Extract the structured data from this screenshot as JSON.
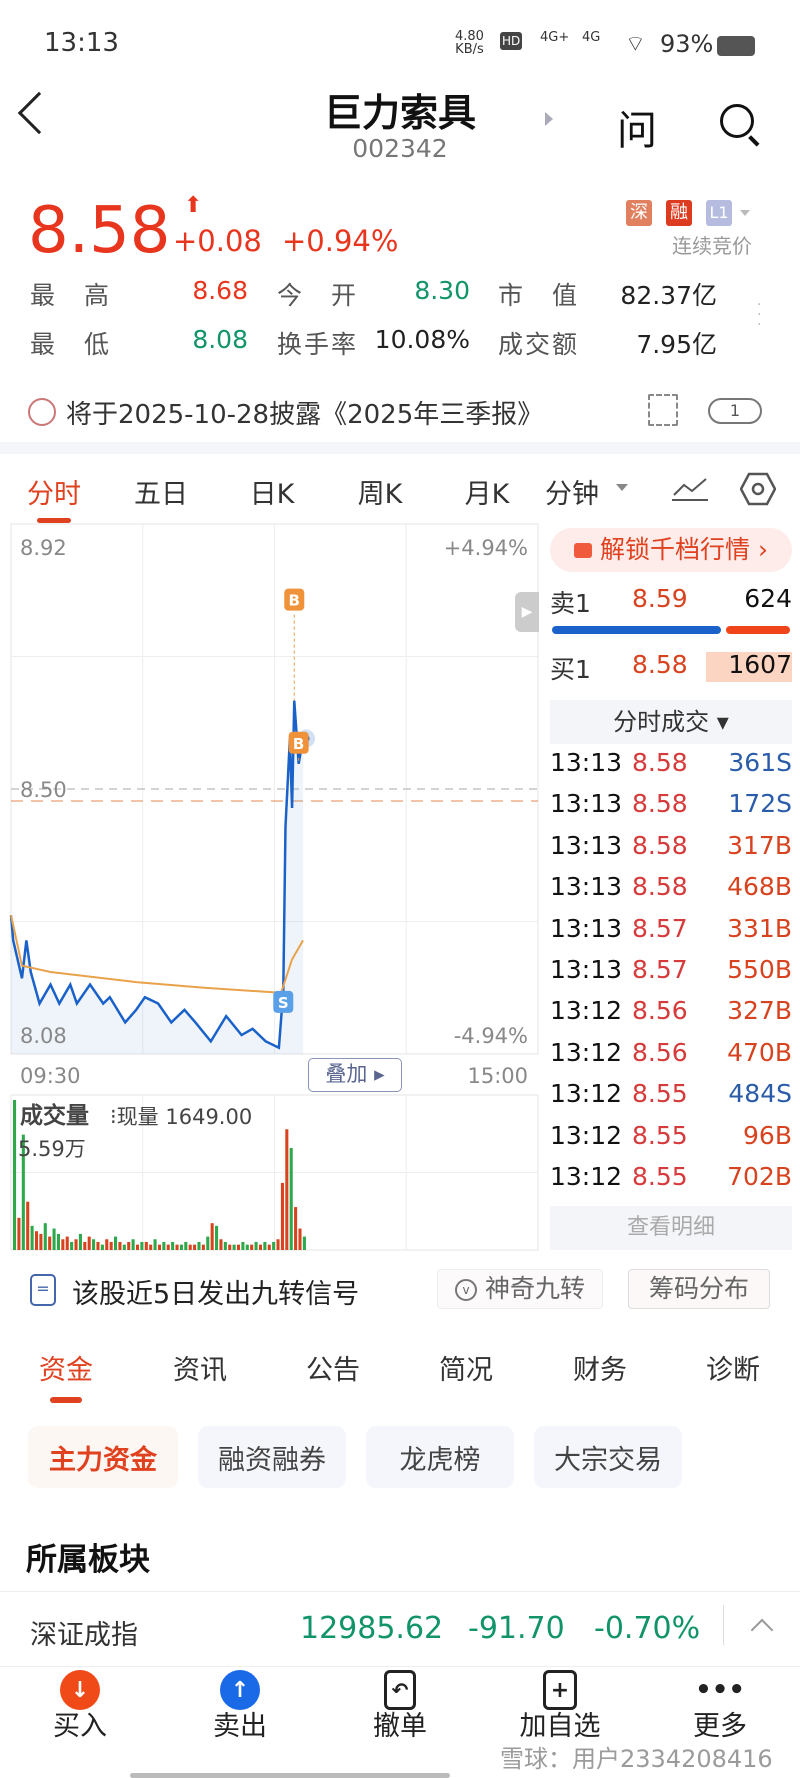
{
  "status_bar": {
    "time": "13:13",
    "net_speed": "4.80",
    "net_unit": "KB/s",
    "hd": "HD",
    "signal1": "4G+",
    "signal2": "4G",
    "battery": "93%"
  },
  "header": {
    "title": "巨力索具",
    "code": "002342",
    "ask_icon": "问"
  },
  "quote": {
    "price": "8.58",
    "change": "+0.08",
    "change_pct": "+0.94%",
    "badges": [
      "深",
      "融",
      "L1"
    ],
    "trading_status": "连续竞价",
    "stats": [
      {
        "label": "最　高",
        "value": "8.68",
        "color": "red"
      },
      {
        "label": "今　开",
        "value": "8.30",
        "color": "green"
      },
      {
        "label": "市　值",
        "value": "82.37亿",
        "color": "black"
      },
      {
        "label": "最　低",
        "value": "8.08",
        "color": "green"
      },
      {
        "label": "换手率",
        "value": "10.08%",
        "color": "black"
      },
      {
        "label": "成交额",
        "value": "7.95亿",
        "color": "black"
      }
    ]
  },
  "notice": {
    "text": "将于2025-10-28披露《2025年三季报》",
    "badge": "1"
  },
  "chart_tabs": [
    "分时",
    "五日",
    "日K",
    "周K",
    "月K",
    "分钟"
  ],
  "chart_data": {
    "type": "line",
    "ylim": [
      8.08,
      8.92
    ],
    "y_tick_labels": [
      "8.92",
      "8.50",
      "8.08"
    ],
    "pct_tick_labels": [
      "+4.94%",
      "-4.94%"
    ],
    "prev_close": 8.5,
    "x_tick_labels": [
      "09:30",
      "15:00"
    ],
    "overlay_button": "叠加",
    "price_series": [
      {
        "t": "09:30",
        "p": 8.3
      },
      {
        "t": "09:31",
        "p": 8.26
      },
      {
        "t": "09:35",
        "p": 8.2
      },
      {
        "t": "09:37",
        "p": 8.26
      },
      {
        "t": "09:39",
        "p": 8.21
      },
      {
        "t": "09:43",
        "p": 8.16
      },
      {
        "t": "09:48",
        "p": 8.19
      },
      {
        "t": "09:52",
        "p": 8.16
      },
      {
        "t": "09:57",
        "p": 8.19
      },
      {
        "t": "10:00",
        "p": 8.16
      },
      {
        "t": "10:06",
        "p": 8.19
      },
      {
        "t": "10:12",
        "p": 8.16
      },
      {
        "t": "10:15",
        "p": 8.17
      },
      {
        "t": "10:22",
        "p": 8.13
      },
      {
        "t": "10:27",
        "p": 8.15
      },
      {
        "t": "10:31",
        "p": 8.17
      },
      {
        "t": "10:37",
        "p": 8.16
      },
      {
        "t": "10:43",
        "p": 8.13
      },
      {
        "t": "10:49",
        "p": 8.15
      },
      {
        "t": "10:54",
        "p": 8.13
      },
      {
        "t": "11:01",
        "p": 8.1
      },
      {
        "t": "11:08",
        "p": 8.14
      },
      {
        "t": "11:15",
        "p": 8.11
      },
      {
        "t": "11:20",
        "p": 8.12
      },
      {
        "t": "11:26",
        "p": 8.1
      },
      {
        "t": "13:02",
        "p": 8.09
      },
      {
        "t": "13:04",
        "p": 8.18
      },
      {
        "t": "13:05",
        "p": 8.44
      },
      {
        "t": "13:07",
        "p": 8.58
      },
      {
        "t": "13:08",
        "p": 8.47
      },
      {
        "t": "13:09",
        "p": 8.64
      },
      {
        "t": "13:10",
        "p": 8.59
      },
      {
        "t": "13:11",
        "p": 8.54
      },
      {
        "t": "13:13",
        "p": 8.58
      }
    ],
    "avg_series": [
      {
        "t": "09:30",
        "p": 8.3
      },
      {
        "t": "09:35",
        "p": 8.22
      },
      {
        "t": "09:48",
        "p": 8.21
      },
      {
        "t": "10:27",
        "p": 8.194
      },
      {
        "t": "10:58",
        "p": 8.185
      },
      {
        "t": "13:03",
        "p": 8.177
      },
      {
        "t": "13:08",
        "p": 8.23
      },
      {
        "t": "13:13",
        "p": 8.26
      }
    ],
    "trade_markers": [
      {
        "t": "13:04",
        "label": "S"
      },
      {
        "t": "13:09",
        "label": "B"
      },
      {
        "t": "13:11",
        "label": "B"
      }
    ],
    "volume": {
      "title": "成交量",
      "current_label": "现量 1649.00",
      "max_label": "5.59万",
      "ymax": 5.59,
      "values": [
        5.59,
        1.2,
        4.3,
        1.8,
        0.9,
        0.7,
        0.6,
        1.0,
        0.5,
        0.8,
        0.6,
        0.4,
        0.5,
        0.3,
        0.4,
        0.6,
        0.3,
        0.5,
        0.4,
        0.3,
        0.2,
        0.4,
        0.3,
        0.5,
        0.3,
        0.2,
        0.3,
        0.4,
        0.2,
        0.3,
        0.3,
        0.2,
        0.4,
        0.2,
        0.3,
        0.2,
        0.3,
        0.2,
        0.2,
        0.3,
        0.2,
        0.2,
        0.3,
        0.2,
        0.5,
        1.0,
        0.9,
        0.4,
        0.3,
        0.2,
        0.2,
        0.2,
        0.3,
        0.2,
        0.2,
        0.3,
        0.2,
        0.3,
        0.2,
        0.3,
        0.4,
        2.5,
        4.5,
        3.8,
        1.6,
        0.8,
        0.5
      ],
      "dirs": "grgrgrrgrggrrgrgrrgrgrrgrgrgrgrrgrgrgrggrrgrgrgrgrgrggrgrgrgrrrgrrg"
    }
  },
  "order_book": {
    "unlock": "解锁千档行情",
    "ask": {
      "label": "卖1",
      "price": "8.59",
      "vol": "624"
    },
    "bid": {
      "label": "买1",
      "price": "8.58",
      "vol": "1607"
    },
    "ask_ratio": 0.72
  },
  "ticks": {
    "header": "分时成交",
    "more": "查看明细",
    "rows": [
      {
        "time": "13:13",
        "price": "8.58",
        "vol": "361S"
      },
      {
        "time": "13:13",
        "price": "8.58",
        "vol": "172S"
      },
      {
        "time": "13:13",
        "price": "8.58",
        "vol": "317B"
      },
      {
        "time": "13:13",
        "price": "8.58",
        "vol": "468B"
      },
      {
        "time": "13:13",
        "price": "8.57",
        "vol": "331B"
      },
      {
        "time": "13:13",
        "price": "8.57",
        "vol": "550B"
      },
      {
        "time": "13:12",
        "price": "8.56",
        "vol": "327B"
      },
      {
        "time": "13:12",
        "price": "8.56",
        "vol": "470B"
      },
      {
        "time": "13:12",
        "price": "8.55",
        "vol": "484S"
      },
      {
        "time": "13:12",
        "price": "8.55",
        "vol": "96B"
      },
      {
        "time": "13:12",
        "price": "8.55",
        "vol": "702B"
      }
    ]
  },
  "signal": {
    "text": "该股近5日发出九转信号",
    "btn1": "神奇九转",
    "btn2": "筹码分布"
  },
  "info_tabs": [
    "资金",
    "资讯",
    "公告",
    "简况",
    "财务",
    "诊断"
  ],
  "chips": [
    "主力资金",
    "融资融券",
    "龙虎榜",
    "大宗交易"
  ],
  "sector": {
    "title": "所属板块",
    "name": "深证成指",
    "value": "12985.62",
    "change": "-91.70",
    "pct": "-0.70%"
  },
  "bottom_nav": [
    "买入",
    "卖出",
    "撤单",
    "加自选",
    "更多"
  ],
  "watermark": "雪球：用户2334208416",
  "colors": {
    "up": "#e8351e",
    "down": "#11946a",
    "line": "#1a62c9",
    "avg": "#e8a24a",
    "sell": "#2a5caa"
  }
}
